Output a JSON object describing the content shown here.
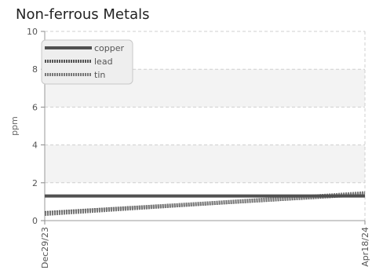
{
  "chart_data": {
    "type": "line",
    "title": "Non-ferrous Metals",
    "xlabel": "",
    "ylabel": "ppm",
    "ylim": [
      0,
      10
    ],
    "yticks": [
      "0",
      "2",
      "4",
      "6",
      "8",
      "10"
    ],
    "x": [
      "Dec29/23",
      "Apr18/24"
    ],
    "xtick_labels": [
      "Dec29/23",
      "Apr18/24"
    ],
    "grid": true,
    "legend_position": "top-left",
    "series": [
      {
        "name": "copper",
        "values": [
          1.3,
          1.3
        ],
        "color": "#505050",
        "style": "solid"
      },
      {
        "name": "lead",
        "values": [
          0.4,
          1.4
        ],
        "color": "#555555",
        "style": "dotted"
      },
      {
        "name": "tin",
        "values": [
          0.35,
          1.45
        ],
        "color": "#777777",
        "style": "dotted"
      }
    ]
  }
}
